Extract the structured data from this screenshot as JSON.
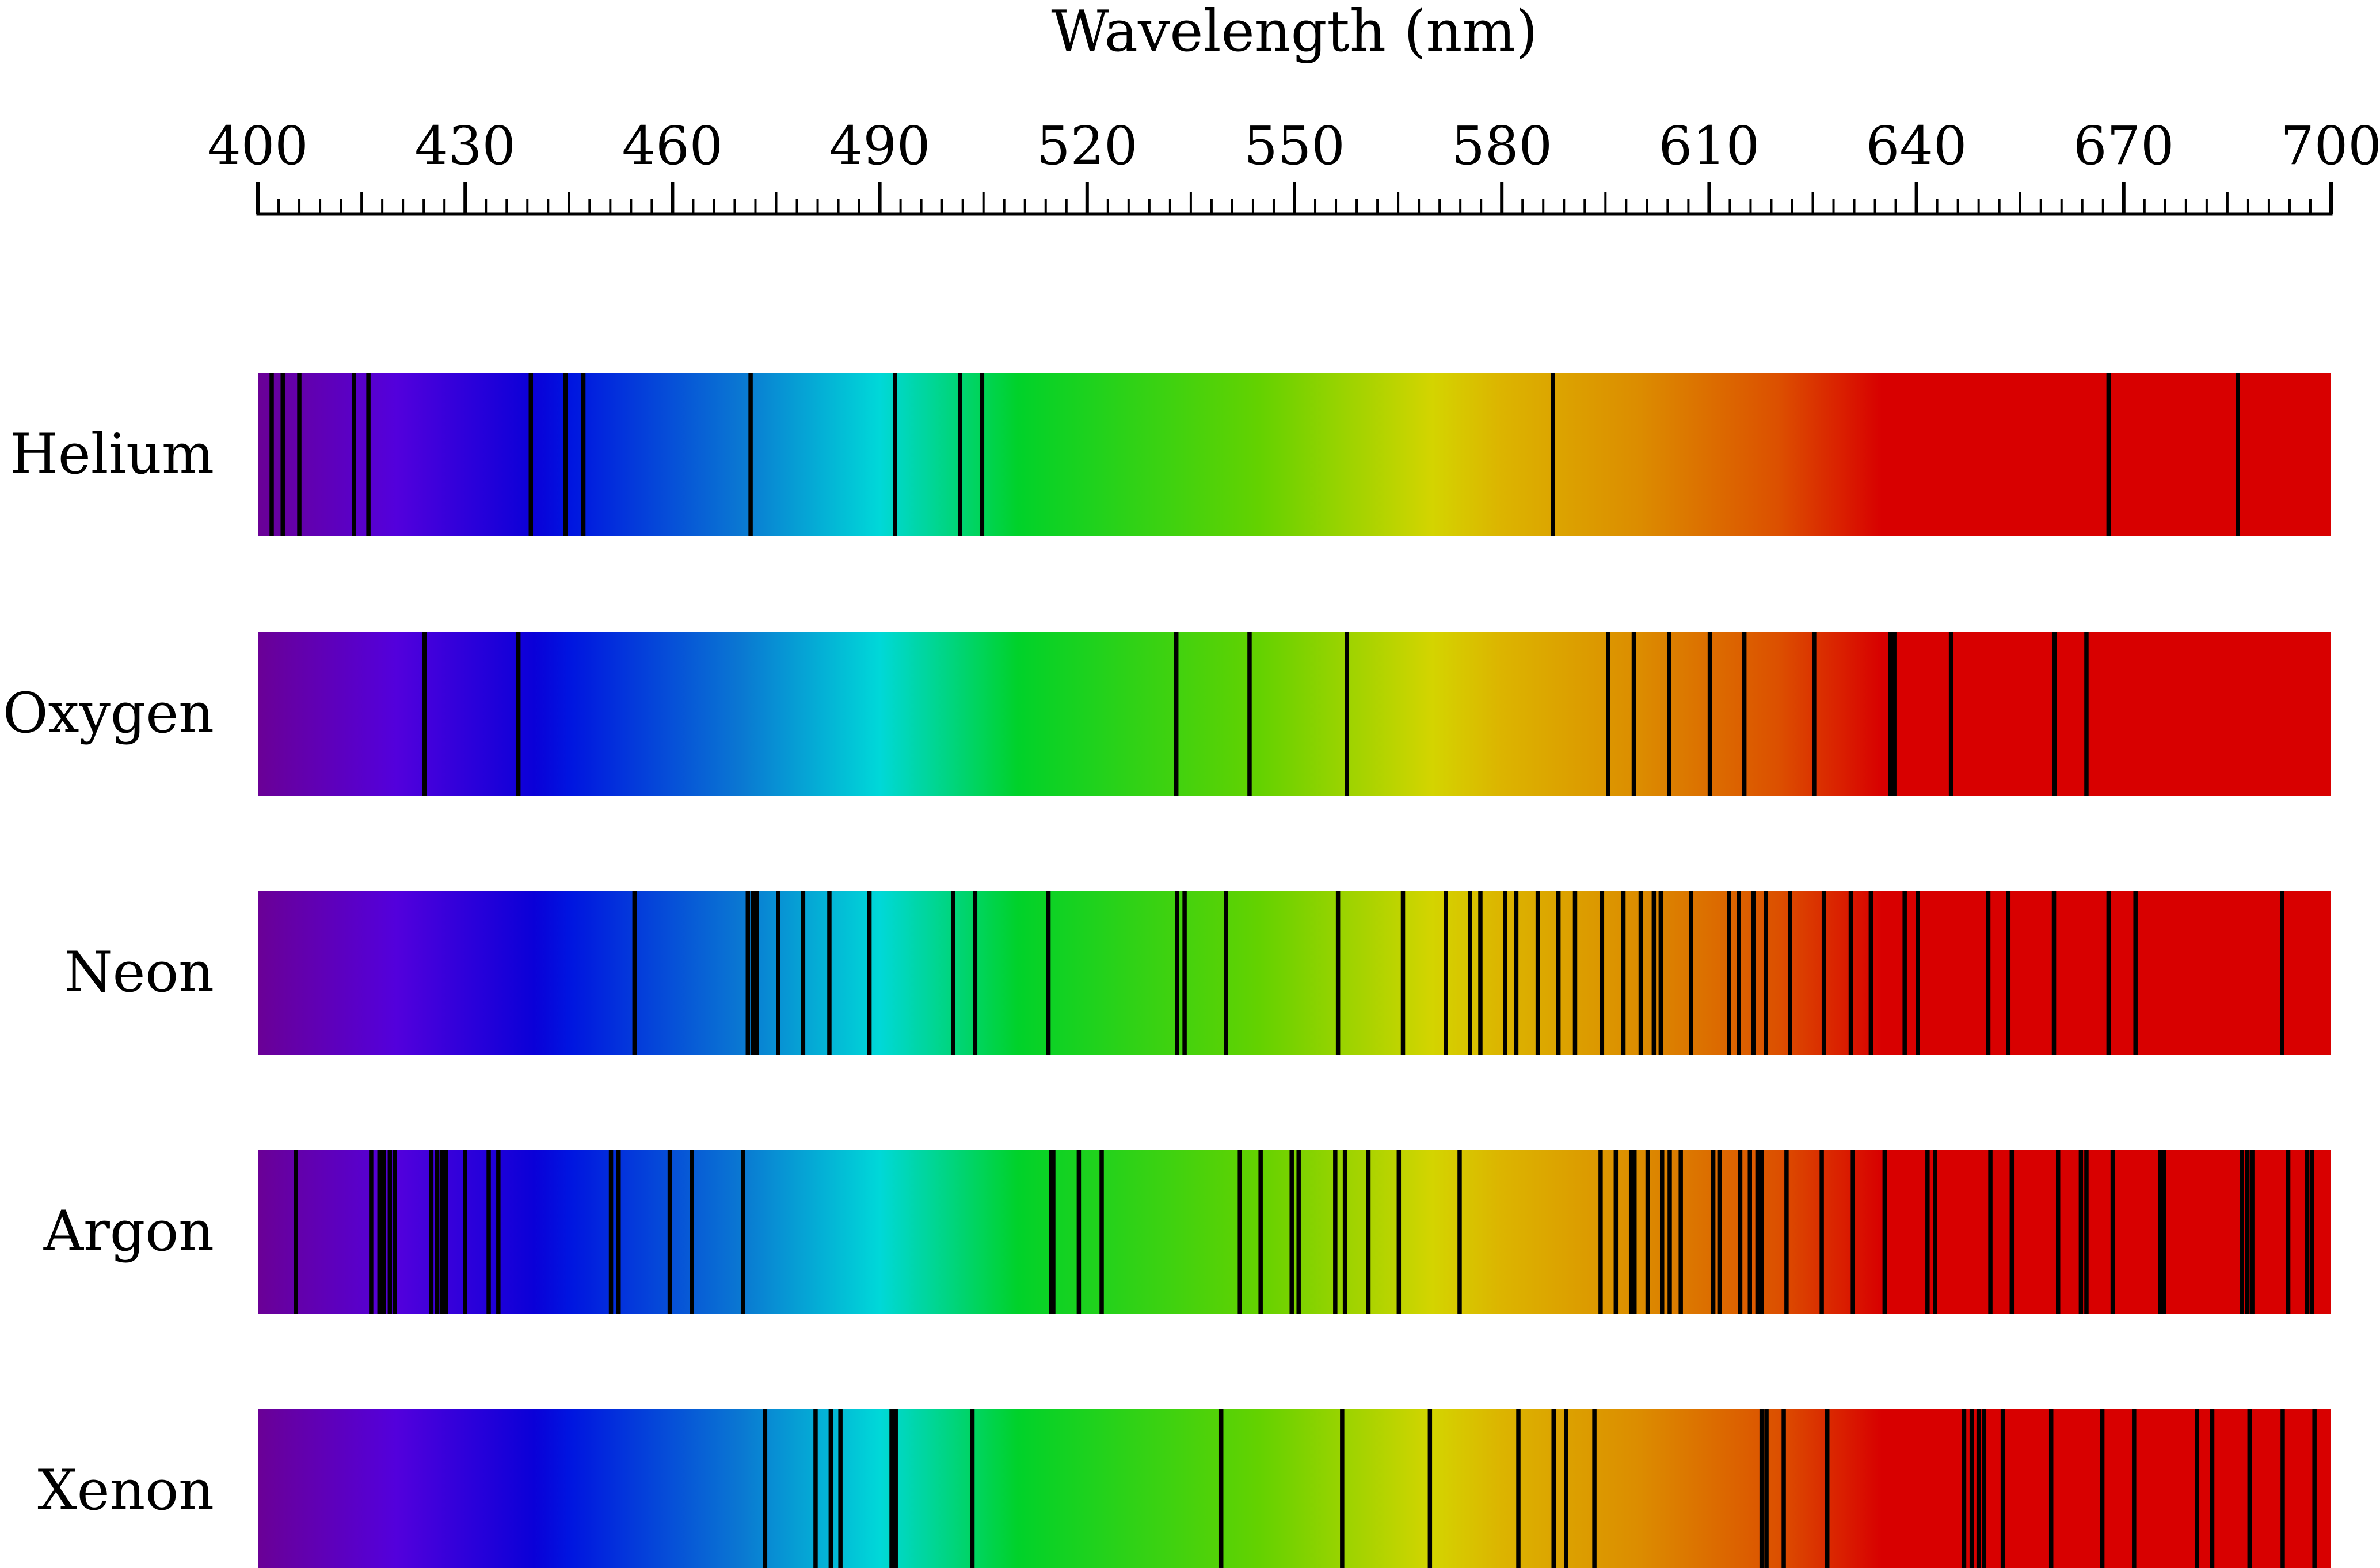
{
  "chart_data": {
    "type": "emission-spectrum",
    "title": "",
    "xlabel": "Wavelength (nm)",
    "xlim": [
      400,
      700
    ],
    "x_ticks_major": [
      400,
      430,
      460,
      490,
      520,
      550,
      580,
      610,
      640,
      670,
      700
    ],
    "x_tick_labels": [
      "400",
      "430",
      "460",
      "490",
      "520",
      "550",
      "580",
      "610",
      "640",
      "670",
      "700"
    ],
    "minor_tick_step": 3,
    "band_colors": [
      {
        "nm": 400,
        "color": "#6a0096"
      },
      {
        "nm": 420,
        "color": "#5300dc"
      },
      {
        "nm": 440,
        "color": "#0a00d8"
      },
      {
        "nm": 445,
        "color": "#0014e0"
      },
      {
        "nm": 470,
        "color": "#0a78d2"
      },
      {
        "nm": 490,
        "color": "#00d8d8"
      },
      {
        "nm": 510,
        "color": "#00d22a"
      },
      {
        "nm": 545,
        "color": "#64d200"
      },
      {
        "nm": 570,
        "color": "#d4d400"
      },
      {
        "nm": 580,
        "color": "#dcb400"
      },
      {
        "nm": 600,
        "color": "#dc8c00"
      },
      {
        "nm": 620,
        "color": "#dc5000"
      },
      {
        "nm": 635,
        "color": "#d80000"
      },
      {
        "nm": 700,
        "color": "#d80000"
      }
    ],
    "line_color": "#000000",
    "series": [
      {
        "name": "Helium",
        "lines": [
          402.0,
          403.6,
          406.0,
          413.9,
          416.0,
          439.5,
          444.5,
          447.1,
          471.3,
          492.2,
          501.6,
          504.8,
          587.4,
          667.8,
          686.5
        ]
      },
      {
        "name": "Oxygen",
        "lines": [
          424.1,
          437.7,
          532.9,
          543.5,
          557.6,
          595.4,
          599.1,
          604.2,
          610.1,
          615.1,
          625.2,
          636.2,
          636.8,
          645.0,
          660.0,
          664.6
        ]
      },
      {
        "name": "Neon",
        "lines": [
          454.5,
          470.9,
          471.6,
          472.2,
          475.3,
          478.9,
          482.7,
          488.5,
          500.6,
          503.8,
          514.4,
          533.0,
          534.1,
          540.1,
          556.3,
          565.7,
          571.9,
          575.4,
          576.9,
          580.5,
          582.1,
          585.2,
          588.2,
          590.6,
          594.5,
          597.6,
          600.1,
          602.0,
          603.0,
          607.4,
          612.9,
          614.3,
          616.4,
          618.2,
          621.7,
          626.6,
          630.5,
          633.4,
          638.3,
          640.2,
          650.4,
          653.3,
          659.9,
          667.8,
          671.7,
          692.9
        ]
      },
      {
        "name": "Argon",
        "lines": [
          405.5,
          416.4,
          417.6,
          418.2,
          419.1,
          419.8,
          425.1,
          425.9,
          426.6,
          427.2,
          430.0,
          433.4,
          434.8,
          451.1,
          452.2,
          459.6,
          462.8,
          470.2,
          514.8,
          515.1,
          518.8,
          522.1,
          542.1,
          545.1,
          549.6,
          550.6,
          555.9,
          557.3,
          560.7,
          565.1,
          573.9,
          594.3,
          596.5,
          598.7,
          599.2,
          601.1,
          603.2,
          604.3,
          605.9,
          610.6,
          611.5,
          614.5,
          615.9,
          617.0,
          617.6,
          621.2,
          626.3,
          630.8,
          635.4,
          641.6,
          642.7,
          650.7,
          653.8,
          660.5,
          663.8,
          664.6,
          668.4,
          675.3,
          675.8,
          687.1,
          687.9,
          688.6,
          693.8,
          696.5,
          697.2
        ]
      },
      {
        "name": "Xenon",
        "lines": [
          473.4,
          480.7,
          482.9,
          484.3,
          491.7,
          492.3,
          503.4,
          539.4,
          556.9,
          569.6,
          582.4,
          587.5,
          589.3,
          593.4,
          617.6,
          618.3,
          620.8,
          627.1,
          646.9,
          648.0,
          649.0,
          649.8,
          652.5,
          659.5,
          666.9,
          671.5,
          680.6,
          682.8,
          688.2,
          693.0,
          697.6
        ]
      }
    ]
  }
}
